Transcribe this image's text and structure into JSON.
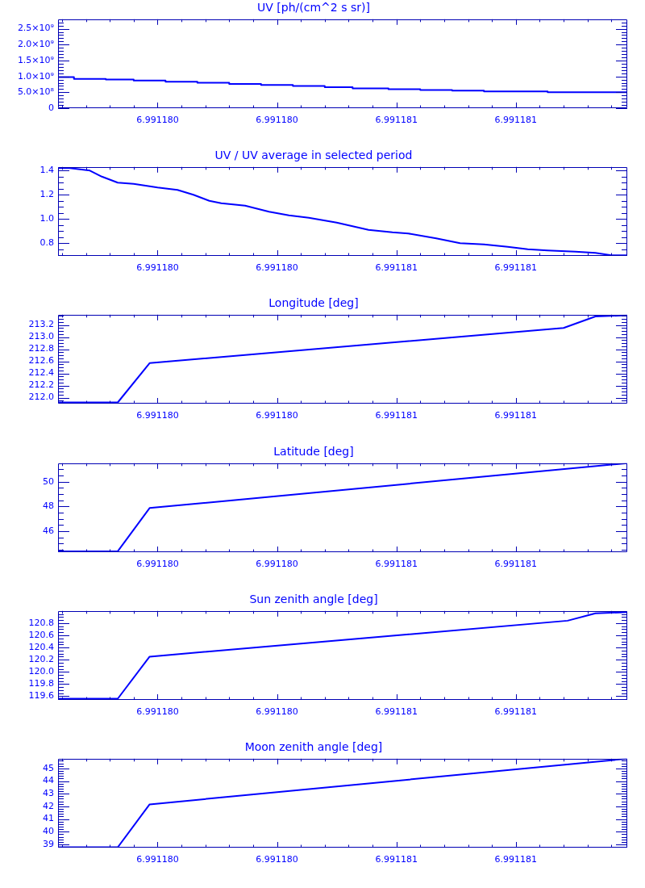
{
  "chart_data": [
    {
      "type": "step",
      "title": "UV [ph/(cm^2 s sr)]",
      "color": "#0000ff",
      "x": [
        6.99117975,
        6.99117979,
        6.99117987,
        6.99117994,
        6.99118002,
        6.9911801,
        6.99118018,
        6.99118026,
        6.99118034,
        6.99118042,
        6.99118049,
        6.99118058,
        6.99118066,
        6.99118074,
        6.99118082,
        6.99118098,
        6.99118114,
        6.99118118
      ],
      "values": [
        1010000000,
        980000000,
        920000000,
        900000000,
        870000000,
        830000000,
        800000000,
        760000000,
        730000000,
        700000000,
        660000000,
        620000000,
        600000000,
        570000000,
        550000000,
        530000000,
        500000000,
        500000000
      ],
      "xlim": [
        6.99117975,
        6.99118118
      ],
      "xticks": [
        {
          "value": 6.99117976,
          "label": null
        },
        {
          "value": 6.99117982,
          "label": null
        },
        {
          "value": 6.99117988,
          "label": null
        },
        {
          "value": 6.99117994,
          "label": null
        },
        {
          "value": 6.99118,
          "label": "6.991180"
        },
        {
          "value": 6.99118006,
          "label": null
        },
        {
          "value": 6.99118012,
          "label": null
        },
        {
          "value": 6.99118018,
          "label": null
        },
        {
          "value": 6.99118024,
          "label": null
        },
        {
          "value": 6.9911803,
          "label": "6.991180"
        },
        {
          "value": 6.99118036,
          "label": null
        },
        {
          "value": 6.99118042,
          "label": null
        },
        {
          "value": 6.99118048,
          "label": null
        },
        {
          "value": 6.99118054,
          "label": null
        },
        {
          "value": 6.9911806,
          "label": "6.991181"
        },
        {
          "value": 6.99118066,
          "label": null
        },
        {
          "value": 6.99118072,
          "label": null
        },
        {
          "value": 6.99118078,
          "label": null
        },
        {
          "value": 6.99118084,
          "label": null
        },
        {
          "value": 6.9911809,
          "label": "6.991181"
        },
        {
          "value": 6.99118096,
          "label": null
        },
        {
          "value": 6.99118102,
          "label": null
        },
        {
          "value": 6.99118108,
          "label": null
        },
        {
          "value": 6.99118114,
          "label": null
        }
      ],
      "ylim": [
        0,
        2800000000
      ],
      "yticks": [
        0,
        {
          "value": 100000000,
          "label": null
        },
        {
          "value": 200000000,
          "label": null
        },
        {
          "value": 300000000,
          "label": null
        },
        {
          "value": 400000000,
          "label": null
        },
        {
          "value": 500000000,
          "label": "5.0×10⁸"
        },
        {
          "value": 600000000,
          "label": null
        },
        {
          "value": 700000000,
          "label": null
        },
        {
          "value": 800000000,
          "label": null
        },
        {
          "value": 900000000,
          "label": null
        },
        {
          "value": 1000000000,
          "label": "1.0×10⁹"
        },
        {
          "value": 1100000000,
          "label": null
        },
        {
          "value": 1200000000,
          "label": null
        },
        {
          "value": 1300000000,
          "label": null
        },
        {
          "value": 1400000000,
          "label": null
        },
        {
          "value": 1500000000,
          "label": "1.5×10⁹"
        },
        {
          "value": 1600000000,
          "label": null
        },
        {
          "value": 1700000000,
          "label": null
        },
        {
          "value": 1800000000,
          "label": null
        },
        {
          "value": 1900000000,
          "label": null
        },
        {
          "value": 2000000000,
          "label": "2.0×10⁹"
        },
        {
          "value": 2100000000,
          "label": null
        },
        {
          "value": 2200000000,
          "label": null
        },
        {
          "value": 2300000000,
          "label": null
        },
        {
          "value": 2400000000,
          "label": null
        },
        {
          "value": 2500000000,
          "label": "2.5×10⁹"
        },
        {
          "value": 2600000000,
          "label": null
        },
        {
          "value": 2700000000,
          "label": null
        }
      ]
    },
    {
      "type": "line",
      "title": "UV / UV average in selected period",
      "color": "#0000ff",
      "x": [
        6.99117975,
        6.99117978,
        6.99117983,
        6.99117986,
        6.9911799,
        6.99117994,
        6.99118,
        6.99118005,
        6.99118009,
        6.99118013,
        6.99118016,
        6.99118022,
        6.99118028,
        6.99118033,
        6.99118038,
        6.99118045,
        6.99118049,
        6.99118053,
        6.99118059,
        6.99118063,
        6.9911807,
        6.99118076,
        6.99118082,
        6.99118088,
        6.99118093,
        6.99118098,
        6.99118105,
        6.9911811,
        6.99118114,
        6.99118118
      ],
      "values": [
        1.42,
        1.42,
        1.4,
        1.35,
        1.3,
        1.29,
        1.26,
        1.24,
        1.2,
        1.15,
        1.13,
        1.11,
        1.06,
        1.03,
        1.01,
        0.97,
        0.94,
        0.91,
        0.89,
        0.88,
        0.84,
        0.8,
        0.79,
        0.77,
        0.75,
        0.74,
        0.73,
        0.72,
        0.7,
        0.7
      ],
      "xlim": [
        6.99117975,
        6.99118118
      ],
      "xticks": [
        {
          "value": 6.99117976,
          "label": null
        },
        {
          "value": 6.99117982,
          "label": null
        },
        {
          "value": 6.99117988,
          "label": null
        },
        {
          "value": 6.99117994,
          "label": null
        },
        {
          "value": 6.99118,
          "label": "6.991180"
        },
        {
          "value": 6.99118006,
          "label": null
        },
        {
          "value": 6.99118012,
          "label": null
        },
        {
          "value": 6.99118018,
          "label": null
        },
        {
          "value": 6.99118024,
          "label": null
        },
        {
          "value": 6.9911803,
          "label": "6.991180"
        },
        {
          "value": 6.99118036,
          "label": null
        },
        {
          "value": 6.99118042,
          "label": null
        },
        {
          "value": 6.99118048,
          "label": null
        },
        {
          "value": 6.99118054,
          "label": null
        },
        {
          "value": 6.9911806,
          "label": "6.991181"
        },
        {
          "value": 6.99118066,
          "label": null
        },
        {
          "value": 6.99118072,
          "label": null
        },
        {
          "value": 6.99118078,
          "label": null
        },
        {
          "value": 6.99118084,
          "label": null
        },
        {
          "value": 6.9911809,
          "label": "6.991181"
        },
        {
          "value": 6.99118096,
          "label": null
        },
        {
          "value": 6.99118102,
          "label": null
        },
        {
          "value": 6.99118108,
          "label": null
        },
        {
          "value": 6.99118114,
          "label": null
        }
      ],
      "ylim": [
        0.695,
        1.43
      ],
      "yticks": [
        {
          "value": 0.7,
          "label": null
        },
        {
          "value": 0.75,
          "label": null
        },
        0.8,
        {
          "value": 0.85,
          "label": null
        },
        {
          "value": 0.9,
          "label": null
        },
        {
          "value": 0.95,
          "label": null
        },
        {
          "value": 1,
          "label": "1.0"
        },
        {
          "value": 1.05,
          "label": null
        },
        {
          "value": 1.1,
          "label": null
        },
        {
          "value": 1.15,
          "label": null
        },
        1.2,
        {
          "value": 1.25,
          "label": null
        },
        {
          "value": 1.3,
          "label": null
        },
        {
          "value": 1.35,
          "label": null
        },
        1.4
      ]
    },
    {
      "type": "line",
      "title": "Longitude [deg]",
      "color": "#0000ff",
      "x": [
        6.99117975,
        6.9911799,
        6.99117998,
        6.99118102,
        6.9911811,
        6.99118118
      ],
      "values": [
        211.92,
        211.92,
        212.57,
        213.15,
        213.34,
        213.36
      ],
      "xlim": [
        6.99117975,
        6.99118118
      ],
      "xticks": [
        {
          "value": 6.99117976,
          "label": null
        },
        {
          "value": 6.99117982,
          "label": null
        },
        {
          "value": 6.99117988,
          "label": null
        },
        {
          "value": 6.99117994,
          "label": null
        },
        {
          "value": 6.99118,
          "label": "6.991180"
        },
        {
          "value": 6.99118006,
          "label": null
        },
        {
          "value": 6.99118012,
          "label": null
        },
        {
          "value": 6.99118018,
          "label": null
        },
        {
          "value": 6.99118024,
          "label": null
        },
        {
          "value": 6.9911803,
          "label": "6.991180"
        },
        {
          "value": 6.99118036,
          "label": null
        },
        {
          "value": 6.99118042,
          "label": null
        },
        {
          "value": 6.99118048,
          "label": null
        },
        {
          "value": 6.99118054,
          "label": null
        },
        {
          "value": 6.9911806,
          "label": "6.991181"
        },
        {
          "value": 6.99118066,
          "label": null
        },
        {
          "value": 6.99118072,
          "label": null
        },
        {
          "value": 6.99118078,
          "label": null
        },
        {
          "value": 6.99118084,
          "label": null
        },
        {
          "value": 6.9911809,
          "label": "6.991181"
        },
        {
          "value": 6.99118096,
          "label": null
        },
        {
          "value": 6.99118102,
          "label": null
        },
        {
          "value": 6.99118108,
          "label": null
        },
        {
          "value": 6.99118114,
          "label": null
        }
      ],
      "ylim": [
        211.9,
        213.37
      ],
      "yticks": [
        {
          "value": 211.95,
          "label": null
        },
        {
          "value": 212,
          "label": "212.0"
        },
        {
          "value": 212.05,
          "label": null
        },
        {
          "value": 212.1,
          "label": null
        },
        {
          "value": 212.15,
          "label": null
        },
        212.2,
        {
          "value": 212.25,
          "label": null
        },
        {
          "value": 212.3,
          "label": null
        },
        {
          "value": 212.35,
          "label": null
        },
        212.4,
        {
          "value": 212.45,
          "label": null
        },
        {
          "value": 212.5,
          "label": null
        },
        {
          "value": 212.55,
          "label": null
        },
        212.6,
        {
          "value": 212.65,
          "label": null
        },
        {
          "value": 212.7,
          "label": null
        },
        {
          "value": 212.75,
          "label": null
        },
        212.8,
        {
          "value": 212.85,
          "label": null
        },
        {
          "value": 212.9,
          "label": null
        },
        {
          "value": 212.95,
          "label": null
        },
        {
          "value": 213,
          "label": "213.0"
        },
        {
          "value": 213.05,
          "label": null
        },
        {
          "value": 213.1,
          "label": null
        },
        {
          "value": 213.15,
          "label": null
        },
        213.2,
        {
          "value": 213.25,
          "label": null
        },
        {
          "value": 213.3,
          "label": null
        },
        {
          "value": 213.35,
          "label": null
        }
      ]
    },
    {
      "type": "line",
      "title": "Latitude [deg]",
      "color": "#0000ff",
      "x": [
        6.99117975,
        6.9911799,
        6.99117998,
        6.99118118
      ],
      "values": [
        44.37,
        44.37,
        47.87,
        51.5
      ],
      "xlim": [
        6.99117975,
        6.99118118
      ],
      "xticks": [
        {
          "value": 6.99117976,
          "label": null
        },
        {
          "value": 6.99117982,
          "label": null
        },
        {
          "value": 6.99117988,
          "label": null
        },
        {
          "value": 6.99117994,
          "label": null
        },
        {
          "value": 6.99118,
          "label": "6.991180"
        },
        {
          "value": 6.99118006,
          "label": null
        },
        {
          "value": 6.99118012,
          "label": null
        },
        {
          "value": 6.99118018,
          "label": null
        },
        {
          "value": 6.99118024,
          "label": null
        },
        {
          "value": 6.9911803,
          "label": "6.991180"
        },
        {
          "value": 6.99118036,
          "label": null
        },
        {
          "value": 6.99118042,
          "label": null
        },
        {
          "value": 6.99118048,
          "label": null
        },
        {
          "value": 6.99118054,
          "label": null
        },
        {
          "value": 6.9911806,
          "label": "6.991181"
        },
        {
          "value": 6.99118066,
          "label": null
        },
        {
          "value": 6.99118072,
          "label": null
        },
        {
          "value": 6.99118078,
          "label": null
        },
        {
          "value": 6.99118084,
          "label": null
        },
        {
          "value": 6.9911809,
          "label": "6.991181"
        },
        {
          "value": 6.99118096,
          "label": null
        },
        {
          "value": 6.99118102,
          "label": null
        },
        {
          "value": 6.99118108,
          "label": null
        },
        {
          "value": 6.99118114,
          "label": null
        }
      ],
      "ylim": [
        44.3,
        51.5
      ],
      "yticks": [
        {
          "value": 44.5,
          "label": null
        },
        {
          "value": 45,
          "label": null
        },
        {
          "value": 45.5,
          "label": null
        },
        46,
        {
          "value": 46.5,
          "label": null
        },
        {
          "value": 47,
          "label": null
        },
        {
          "value": 47.5,
          "label": null
        },
        48,
        {
          "value": 48.5,
          "label": null
        },
        {
          "value": 49,
          "label": null
        },
        {
          "value": 49.5,
          "label": null
        },
        50,
        {
          "value": 50.5,
          "label": null
        },
        {
          "value": 51,
          "label": null
        }
      ]
    },
    {
      "type": "line",
      "title": "Sun zenith angle [deg]",
      "color": "#0000ff",
      "x": [
        6.99117975,
        6.9911799,
        6.99117998,
        6.99118103,
        6.9911811,
        6.99118118
      ],
      "values": [
        119.56,
        119.56,
        120.25,
        120.84,
        120.96,
        120.98
      ],
      "xlim": [
        6.99117975,
        6.99118118
      ],
      "xticks": [
        {
          "value": 6.99117976,
          "label": null
        },
        {
          "value": 6.99117982,
          "label": null
        },
        {
          "value": 6.99117988,
          "label": null
        },
        {
          "value": 6.99117994,
          "label": null
        },
        {
          "value": 6.99118,
          "label": "6.991180"
        },
        {
          "value": 6.99118006,
          "label": null
        },
        {
          "value": 6.99118012,
          "label": null
        },
        {
          "value": 6.99118018,
          "label": null
        },
        {
          "value": 6.99118024,
          "label": null
        },
        {
          "value": 6.9911803,
          "label": "6.991180"
        },
        {
          "value": 6.99118036,
          "label": null
        },
        {
          "value": 6.99118042,
          "label": null
        },
        {
          "value": 6.99118048,
          "label": null
        },
        {
          "value": 6.99118054,
          "label": null
        },
        {
          "value": 6.9911806,
          "label": "6.991181"
        },
        {
          "value": 6.99118066,
          "label": null
        },
        {
          "value": 6.99118072,
          "label": null
        },
        {
          "value": 6.99118078,
          "label": null
        },
        {
          "value": 6.99118084,
          "label": null
        },
        {
          "value": 6.9911809,
          "label": "6.991181"
        },
        {
          "value": 6.99118096,
          "label": null
        },
        {
          "value": 6.99118102,
          "label": null
        },
        {
          "value": 6.99118108,
          "label": null
        },
        {
          "value": 6.99118114,
          "label": null
        }
      ],
      "ylim": [
        119.54,
        121.0
      ],
      "yticks": [
        {
          "value": 119.55,
          "label": null
        },
        119.6,
        {
          "value": 119.65,
          "label": null
        },
        {
          "value": 119.7,
          "label": null
        },
        {
          "value": 119.75,
          "label": null
        },
        119.8,
        {
          "value": 119.85,
          "label": null
        },
        {
          "value": 119.9,
          "label": null
        },
        {
          "value": 119.95,
          "label": null
        },
        {
          "value": 120,
          "label": "120.0"
        },
        {
          "value": 120.05,
          "label": null
        },
        {
          "value": 120.1,
          "label": null
        },
        {
          "value": 120.15,
          "label": null
        },
        120.2,
        {
          "value": 120.25,
          "label": null
        },
        {
          "value": 120.3,
          "label": null
        },
        {
          "value": 120.35,
          "label": null
        },
        120.4,
        {
          "value": 120.45,
          "label": null
        },
        {
          "value": 120.5,
          "label": null
        },
        {
          "value": 120.55,
          "label": null
        },
        120.6,
        {
          "value": 120.65,
          "label": null
        },
        {
          "value": 120.7,
          "label": null
        },
        {
          "value": 120.75,
          "label": null
        },
        120.8,
        {
          "value": 120.85,
          "label": null
        },
        {
          "value": 120.9,
          "label": null
        },
        {
          "value": 120.95,
          "label": null
        }
      ]
    },
    {
      "type": "line",
      "title": "Moon zenith angle [deg]",
      "color": "#0000ff",
      "x": [
        6.99117975,
        6.9911799,
        6.99117998,
        6.99118118
      ],
      "values": [
        38.77,
        38.77,
        42.16,
        45.77
      ],
      "xlim": [
        6.99117975,
        6.99118118
      ],
      "xticks": [
        {
          "value": 6.99117976,
          "label": null
        },
        {
          "value": 6.99117982,
          "label": null
        },
        {
          "value": 6.99117988,
          "label": null
        },
        {
          "value": 6.99117994,
          "label": null
        },
        {
          "value": 6.99118,
          "label": "6.991180"
        },
        {
          "value": 6.99118006,
          "label": null
        },
        {
          "value": 6.99118012,
          "label": null
        },
        {
          "value": 6.99118018,
          "label": null
        },
        {
          "value": 6.99118024,
          "label": null
        },
        {
          "value": 6.9911803,
          "label": "6.991180"
        },
        {
          "value": 6.99118036,
          "label": null
        },
        {
          "value": 6.99118042,
          "label": null
        },
        {
          "value": 6.99118048,
          "label": null
        },
        {
          "value": 6.99118054,
          "label": null
        },
        {
          "value": 6.9911806,
          "label": "6.991181"
        },
        {
          "value": 6.99118066,
          "label": null
        },
        {
          "value": 6.99118072,
          "label": null
        },
        {
          "value": 6.99118078,
          "label": null
        },
        {
          "value": 6.99118084,
          "label": null
        },
        {
          "value": 6.9911809,
          "label": "6.991181"
        },
        {
          "value": 6.99118096,
          "label": null
        },
        {
          "value": 6.99118102,
          "label": null
        },
        {
          "value": 6.99118108,
          "label": null
        },
        {
          "value": 6.99118114,
          "label": null
        }
      ],
      "ylim": [
        38.74,
        45.77
      ],
      "yticks": [
        {
          "value": 38.8,
          "label": null
        },
        39,
        {
          "value": 39.2,
          "label": null
        },
        {
          "value": 39.4,
          "label": null
        },
        {
          "value": 39.6,
          "label": null
        },
        {
          "value": 39.8,
          "label": null
        },
        40,
        {
          "value": 40.2,
          "label": null
        },
        {
          "value": 40.4,
          "label": null
        },
        {
          "value": 40.6,
          "label": null
        },
        {
          "value": 40.8,
          "label": null
        },
        41,
        {
          "value": 41.2,
          "label": null
        },
        {
          "value": 41.4,
          "label": null
        },
        {
          "value": 41.6,
          "label": null
        },
        {
          "value": 41.8,
          "label": null
        },
        42,
        {
          "value": 42.2,
          "label": null
        },
        {
          "value": 42.4,
          "label": null
        },
        {
          "value": 42.6,
          "label": null
        },
        {
          "value": 42.8,
          "label": null
        },
        43,
        {
          "value": 43.2,
          "label": null
        },
        {
          "value": 43.4,
          "label": null
        },
        {
          "value": 43.6,
          "label": null
        },
        {
          "value": 43.8,
          "label": null
        },
        44,
        {
          "value": 44.2,
          "label": null
        },
        {
          "value": 44.4,
          "label": null
        },
        {
          "value": 44.6,
          "label": null
        },
        {
          "value": 44.8,
          "label": null
        },
        45,
        {
          "value": 45.2,
          "label": null
        },
        {
          "value": 45.4,
          "label": null
        },
        {
          "value": 45.6,
          "label": null
        }
      ]
    }
  ]
}
